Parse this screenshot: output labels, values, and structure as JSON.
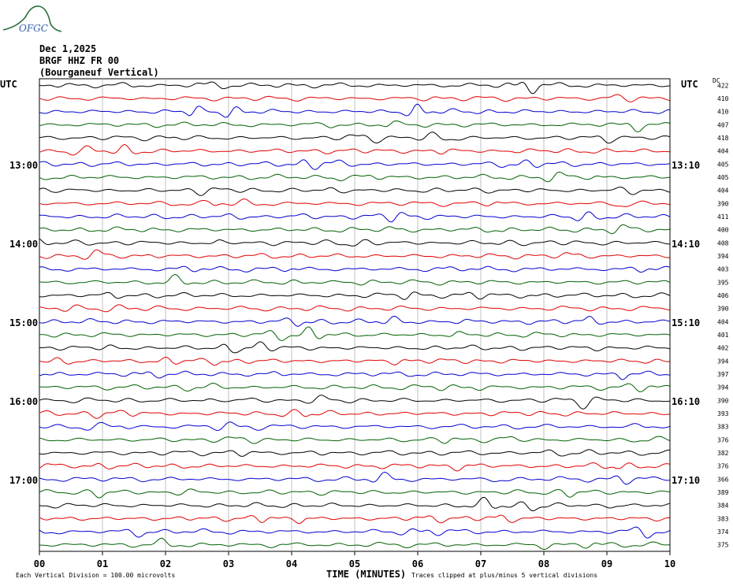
{
  "logo": {
    "text": "OFGC",
    "color": "#2a6e3a",
    "text_color": "#2f5fa8"
  },
  "header": {
    "date": "Dec 1,2025",
    "station": "BRGF HHZ FR 00",
    "description": "(Bourganeuf Vertical)"
  },
  "left_axis": {
    "title": "UTC",
    "hour_labels": [
      "13:00",
      "14:00",
      "15:00",
      "16:00",
      "17:00"
    ]
  },
  "right_axis": {
    "title": "UTC",
    "hour_labels": [
      "13:10",
      "14:10",
      "15:10",
      "16:10",
      "17:10"
    ],
    "dc_title": "DC"
  },
  "footer": {
    "xlabel": "TIME (MINUTES)",
    "scale_note": "Each Vertical Division =  100.00 microvolts",
    "clip_note": "Traces clipped at plus/minus 5 vertical divisions"
  },
  "chart_data": {
    "type": "line",
    "title": "BRGF HHZ FR 00",
    "xlabel": "TIME (MINUTES)",
    "ylabel": "",
    "xlim": [
      0,
      10
    ],
    "x_ticks": [
      "00",
      "01",
      "02",
      "03",
      "04",
      "05",
      "06",
      "07",
      "08",
      "09",
      "10"
    ],
    "trace_colors": [
      "#000000",
      "#e00000",
      "#0000d0",
      "#006000"
    ],
    "dc_offsets": [
      422,
      410,
      410,
      407,
      418,
      404,
      405,
      405,
      404,
      390,
      411,
      400,
      408,
      394,
      403,
      395,
      406,
      390,
      404,
      401,
      402,
      394,
      397,
      394,
      390,
      393,
      383,
      376,
      382,
      376,
      366,
      389,
      384,
      383,
      374,
      375
    ],
    "grid": true
  }
}
